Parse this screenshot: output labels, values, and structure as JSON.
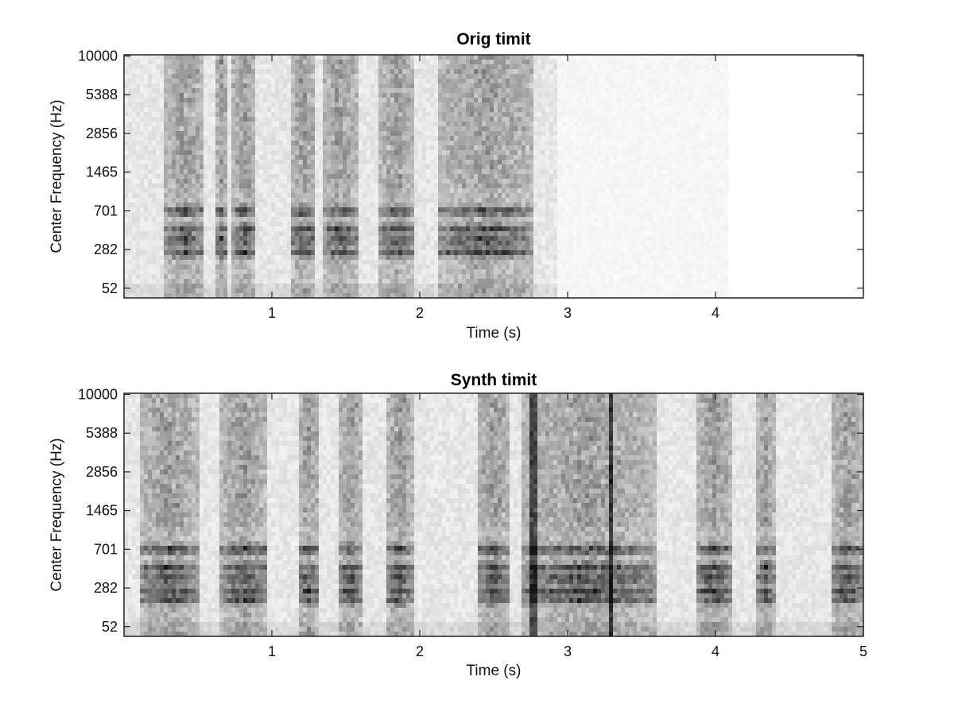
{
  "chart_data": [
    {
      "type": "heatmap",
      "title": "Orig timit",
      "xlabel": "Time (s)",
      "ylabel": "Center Frequency (Hz)",
      "xlim": [
        0,
        5
      ],
      "x_ticks": [
        1,
        2,
        3,
        4
      ],
      "y_ticks": [
        "10000",
        "5388",
        "2856",
        "1465",
        "701",
        "282",
        "52"
      ],
      "colormap": "gray (white = low, black = high)",
      "signal_end_s": 2.93,
      "background_end_s": 4.08,
      "speech_segments_s": [
        [
          0.28,
          0.55
        ],
        [
          0.62,
          0.7
        ],
        [
          0.73,
          0.9
        ],
        [
          1.12,
          1.3
        ],
        [
          1.35,
          1.58
        ],
        [
          1.72,
          1.97
        ],
        [
          2.12,
          2.78
        ]
      ],
      "peak_bands_hz": [
        700,
        450,
        350,
        250
      ],
      "grid": false
    },
    {
      "type": "heatmap",
      "title": "Synth timit",
      "xlabel": "Time (s)",
      "ylabel": "Center Frequency (Hz)",
      "xlim": [
        0,
        5
      ],
      "x_ticks": [
        1,
        2,
        3,
        4,
        5
      ],
      "y_ticks": [
        "10000",
        "5388",
        "2856",
        "1465",
        "701",
        "282",
        "52"
      ],
      "colormap": "gray (white = low, black = high)",
      "signal_end_s": 5.0,
      "speech_segments_s": [
        [
          0.1,
          0.5
        ],
        [
          0.65,
          0.98
        ],
        [
          1.18,
          1.32
        ],
        [
          1.45,
          1.62
        ],
        [
          1.78,
          1.95
        ],
        [
          2.38,
          2.62
        ],
        [
          2.68,
          3.6
        ],
        [
          3.86,
          4.12
        ],
        [
          4.28,
          4.4
        ],
        [
          4.78,
          5.0
        ]
      ],
      "peak_bands_hz": [
        700,
        450,
        350,
        250,
        170
      ],
      "bright_vertical_lines_s": [
        2.77,
        3.3
      ],
      "grid": false
    }
  ]
}
